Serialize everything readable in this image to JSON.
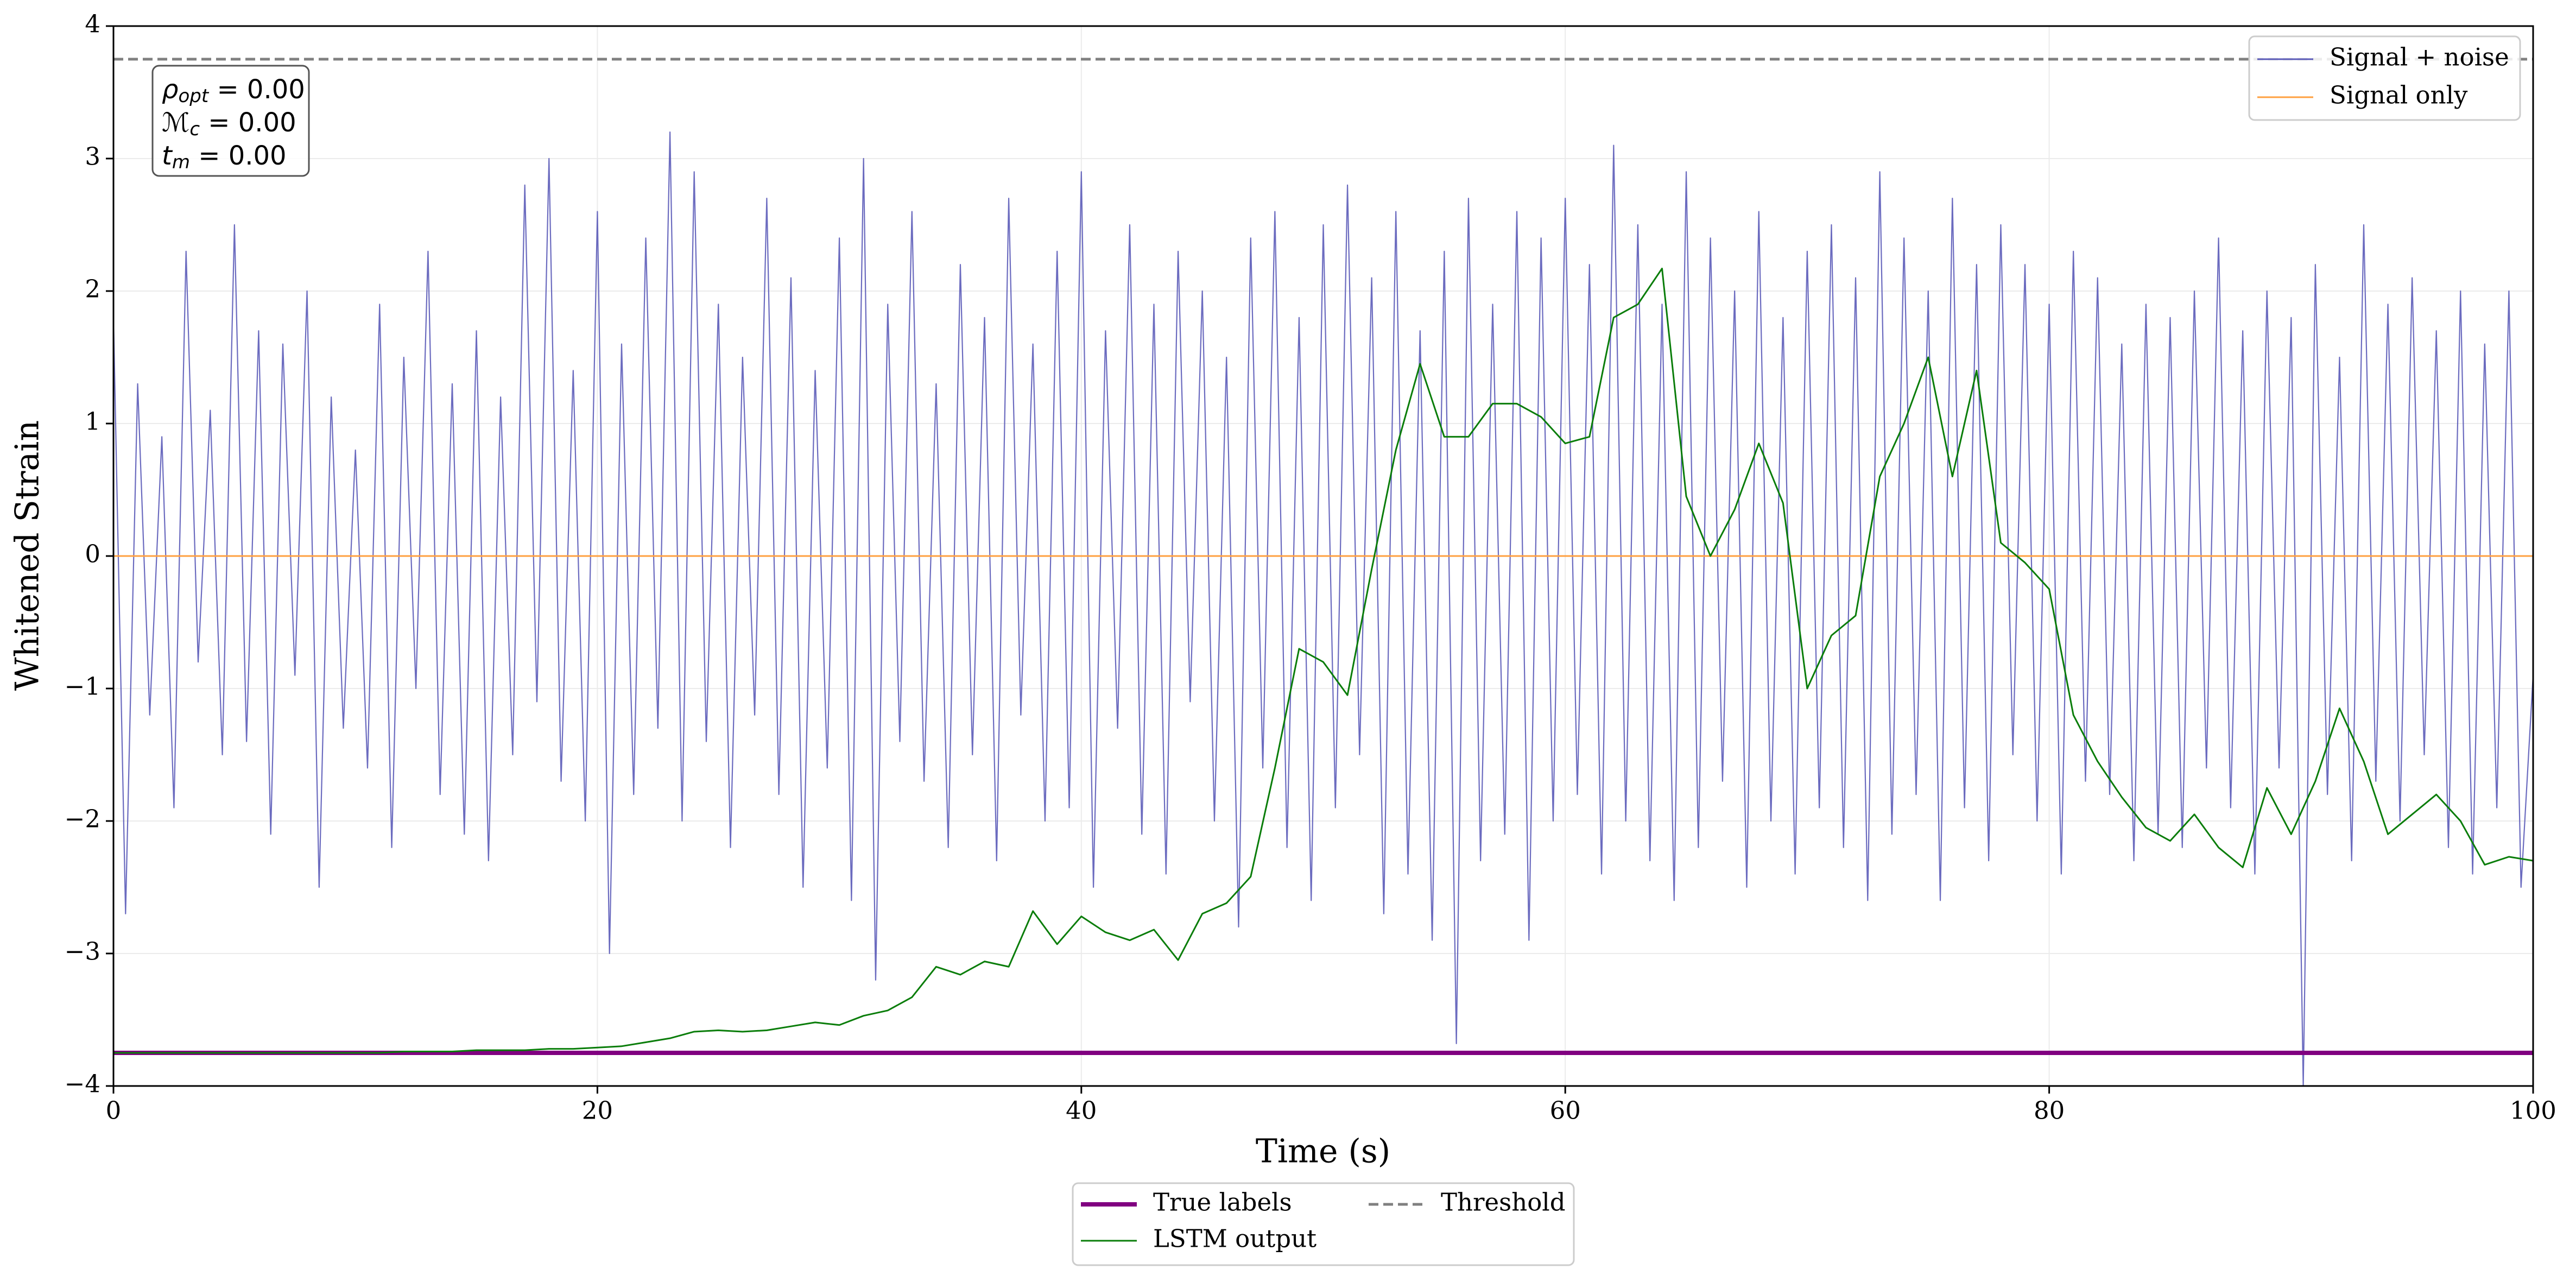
{
  "chart_data": {
    "type": "line",
    "xlabel": "Time (s)",
    "ylabel": "Whitened Strain",
    "xlim": [
      0,
      100
    ],
    "ylim": [
      -4,
      4
    ],
    "xticks": [
      0,
      20,
      40,
      60,
      80,
      100
    ],
    "yticks": [
      {
        "value": -4,
        "label": "−4"
      },
      {
        "value": -3,
        "label": "−3"
      },
      {
        "value": -2,
        "label": "−2"
      },
      {
        "value": -1,
        "label": "−1"
      },
      0,
      1,
      2,
      3,
      4
    ],
    "grid": true,
    "annotation": [
      {
        "symbol": "ρ",
        "sub": "opt",
        "text": " = 0.00"
      },
      {
        "symbol": "ℳ",
        "sub": "c",
        "text": " = 0.00"
      },
      {
        "symbol": "t",
        "sub": "m",
        "text": " = 0.00"
      }
    ],
    "series": [
      {
        "name": "Signal + noise",
        "color": "#5b5bb8",
        "legend": "upper right",
        "style": "solid",
        "x": [
          0,
          0.5,
          1,
          1.5,
          2,
          2.5,
          3,
          3.5,
          4,
          4.5,
          5,
          5.5,
          6,
          6.5,
          7,
          7.5,
          8,
          8.5,
          9,
          9.5,
          10,
          10.5,
          11,
          11.5,
          12,
          12.5,
          13,
          13.5,
          14,
          14.5,
          15,
          15.5,
          16,
          16.5,
          17,
          17.5,
          18,
          18.5,
          19,
          19.5,
          20,
          20.5,
          21,
          21.5,
          22,
          22.5,
          23,
          23.5,
          24,
          24.5,
          25,
          25.5,
          26,
          26.5,
          27,
          27.5,
          28,
          28.5,
          29,
          29.5,
          30,
          30.5,
          31,
          31.5,
          32,
          32.5,
          33,
          33.5,
          34,
          34.5,
          35,
          35.5,
          36,
          36.5,
          37,
          37.5,
          38,
          38.5,
          39,
          39.5,
          40,
          40.5,
          41,
          41.5,
          42,
          42.5,
          43,
          43.5,
          44,
          44.5,
          45,
          45.5,
          46,
          46.5,
          47,
          47.5,
          48,
          48.5,
          49,
          49.5,
          50,
          50.5,
          51,
          51.5,
          52,
          52.5,
          53,
          53.5,
          54,
          54.5,
          55,
          55.5,
          56,
          56.5,
          57,
          57.5,
          58,
          58.5,
          59,
          59.5,
          60,
          60.5,
          61,
          61.5,
          62,
          62.5,
          63,
          63.5,
          64,
          64.5,
          65,
          65.5,
          66,
          66.5,
          67,
          67.5,
          68,
          68.5,
          69,
          69.5,
          70,
          70.5,
          71,
          71.5,
          72,
          72.5,
          73,
          73.5,
          74,
          74.5,
          75,
          75.5,
          76,
          76.5,
          77,
          77.5,
          78,
          78.5,
          79,
          79.5,
          80,
          80.5,
          81,
          81.5,
          82,
          82.5,
          83,
          83.5,
          84,
          84.5,
          85,
          85.5,
          86,
          86.5,
          87,
          87.5,
          88,
          88.5,
          89,
          89.5,
          90,
          90.5,
          91,
          91.5,
          92,
          92.5,
          93,
          93.5,
          94,
          94.5,
          95,
          95.5,
          96,
          96.5,
          97,
          97.5,
          98,
          98.5,
          99,
          99.5,
          100
        ],
        "values": [
          1.8,
          -2.7,
          1.3,
          -1.2,
          0.9,
          -1.9,
          2.3,
          -0.8,
          1.1,
          -1.5,
          2.5,
          -1.4,
          1.7,
          -2.1,
          1.6,
          -0.9,
          2.0,
          -2.5,
          1.2,
          -1.3,
          0.8,
          -1.6,
          1.9,
          -2.2,
          1.5,
          -1.0,
          2.3,
          -1.8,
          1.3,
          -2.1,
          1.7,
          -2.3,
          1.2,
          -1.5,
          2.8,
          -1.1,
          3.0,
          -1.7,
          1.4,
          -2.0,
          2.6,
          -3.0,
          1.6,
          -1.8,
          2.4,
          -1.3,
          3.2,
          -2.0,
          2.9,
          -1.4,
          1.9,
          -2.2,
          1.5,
          -1.2,
          2.7,
          -1.8,
          2.1,
          -2.5,
          1.4,
          -1.6,
          2.4,
          -2.6,
          3.0,
          -3.2,
          1.9,
          -1.4,
          2.6,
          -1.7,
          1.3,
          -2.2,
          2.2,
          -1.5,
          1.8,
          -2.3,
          2.7,
          -1.2,
          1.6,
          -2.0,
          2.3,
          -1.9,
          2.9,
          -2.5,
          1.7,
          -1.3,
          2.5,
          -2.1,
          1.9,
          -2.4,
          2.3,
          -1.1,
          2.0,
          -2.0,
          1.5,
          -2.8,
          2.4,
          -1.6,
          2.6,
          -2.2,
          1.8,
          -2.6,
          2.5,
          -1.9,
          2.8,
          -1.5,
          2.1,
          -2.7,
          2.6,
          -2.4,
          1.7,
          -2.9,
          2.3,
          -3.68,
          2.7,
          -2.3,
          1.9,
          -2.1,
          2.6,
          -2.9,
          2.4,
          -2.0,
          2.7,
          -1.8,
          2.2,
          -2.4,
          3.1,
          -2.0,
          2.5,
          -2.3,
          1.9,
          -2.6,
          2.9,
          -2.2,
          2.4,
          -1.7,
          2.0,
          -2.5,
          2.6,
          -2.0,
          1.8,
          -2.4,
          2.3,
          -1.9,
          2.5,
          -2.2,
          2.1,
          -2.6,
          2.9,
          -2.1,
          2.4,
          -1.8,
          2.0,
          -2.6,
          2.7,
          -1.9,
          2.2,
          -2.3,
          2.5,
          -1.5,
          2.2,
          -2.0,
          1.9,
          -2.4,
          2.3,
          -1.7,
          2.1,
          -1.8,
          1.6,
          -2.3,
          1.9,
          -2.1,
          1.8,
          -2.2,
          2.0,
          -1.6,
          2.4,
          -1.9,
          1.7,
          -2.4,
          2.0,
          -1.6,
          1.8,
          -4.0,
          2.2,
          -1.8,
          1.5,
          -2.3,
          2.5,
          -1.7,
          1.9,
          -2.0,
          2.1,
          -1.5,
          1.7,
          -2.2,
          2.0,
          -2.4,
          1.6,
          -1.9,
          2.0,
          -2.5,
          -0.9
        ]
      },
      {
        "name": "Signal only",
        "color": "#ffa040",
        "legend": "upper right",
        "style": "solid",
        "x": [
          0,
          100
        ],
        "values": [
          0,
          0
        ]
      },
      {
        "name": "True labels",
        "color": "#800080",
        "legend": "below",
        "style": "thick",
        "x": [
          0,
          100
        ],
        "values": [
          -3.75,
          -3.75
        ]
      },
      {
        "name": "LSTM output",
        "color": "#0a7d0a",
        "legend": "below",
        "style": "solid",
        "x": [
          0,
          1,
          2,
          3,
          4,
          5,
          6,
          7,
          8,
          9,
          10,
          11,
          12,
          13,
          14,
          15,
          16,
          17,
          18,
          19,
          20,
          21,
          22,
          23,
          24,
          25,
          26,
          27,
          28,
          29,
          30,
          31,
          32,
          33,
          34,
          35,
          36,
          37,
          38,
          39,
          40,
          41,
          42,
          43,
          44,
          45,
          46,
          47,
          48,
          49,
          50,
          51,
          52,
          53,
          54,
          55,
          56,
          57,
          58,
          59,
          60,
          61,
          62,
          63,
          64,
          65,
          66,
          67,
          68,
          69,
          70,
          71,
          72,
          73,
          74,
          75,
          76,
          77,
          78,
          79,
          80,
          81,
          82,
          83,
          84,
          85,
          86,
          87,
          88,
          89,
          90,
          91,
          92,
          93,
          94,
          95,
          96,
          97,
          98,
          99,
          100
        ],
        "values": [
          -3.75,
          -3.75,
          -3.75,
          -3.75,
          -3.75,
          -3.75,
          -3.75,
          -3.75,
          -3.75,
          -3.75,
          -3.75,
          -3.75,
          -3.74,
          -3.74,
          -3.74,
          -3.73,
          -3.73,
          -3.73,
          -3.72,
          -3.72,
          -3.71,
          -3.7,
          -3.67,
          -3.64,
          -3.59,
          -3.58,
          -3.59,
          -3.58,
          -3.55,
          -3.52,
          -3.54,
          -3.47,
          -3.43,
          -3.33,
          -3.1,
          -3.16,
          -3.06,
          -3.1,
          -2.68,
          -2.93,
          -2.72,
          -2.84,
          -2.9,
          -2.82,
          -3.05,
          -2.7,
          -2.62,
          -2.42,
          -1.6,
          -0.7,
          -0.8,
          -1.05,
          -0.1,
          0.8,
          1.45,
          0.9,
          0.9,
          1.15,
          1.15,
          1.05,
          0.85,
          0.9,
          1.8,
          1.9,
          2.17,
          0.45,
          0.0,
          0.35,
          0.85,
          0.4,
          -1.0,
          -0.6,
          -0.45,
          0.6,
          1.0,
          1.5,
          0.6,
          1.4,
          0.1,
          -0.05,
          -0.25,
          -1.2,
          -1.55,
          -1.82,
          -2.05,
          -2.15,
          -1.95,
          -2.2,
          -2.35,
          -1.75,
          -2.1,
          -1.7,
          -1.15,
          -1.55,
          -2.1,
          -1.95,
          -1.8,
          -2.0,
          -2.33,
          -2.27,
          -2.3
        ]
      },
      {
        "name": "Threshold",
        "color": "#808080",
        "legend": "below",
        "style": "dashed",
        "x": [
          0,
          100
        ],
        "values": [
          3.75,
          3.75
        ]
      }
    ]
  }
}
